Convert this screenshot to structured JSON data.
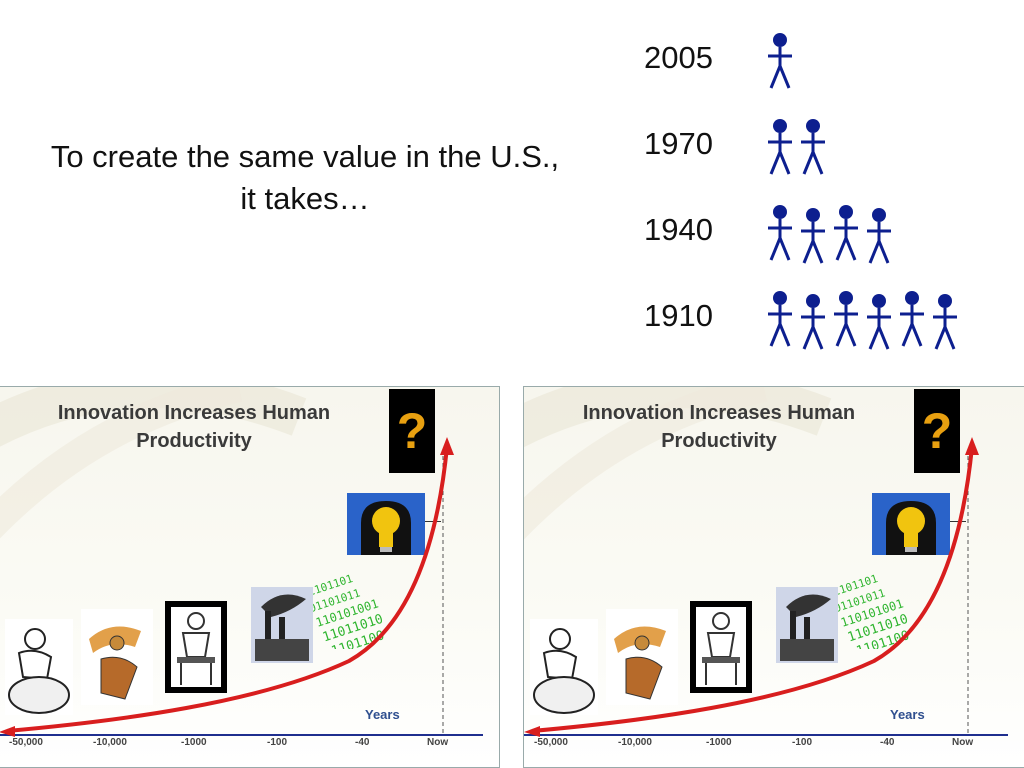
{
  "intro": {
    "line1": "To create the same value in the U.S.,",
    "line2": "it takes…"
  },
  "rows": [
    {
      "year": "2005",
      "people": 1
    },
    {
      "year": "1970",
      "people": 2
    },
    {
      "year": "1940",
      "people": 4
    },
    {
      "year": "1910",
      "people": 6
    }
  ],
  "panels": [
    {
      "title_line1": "Innovation Increases Human",
      "title_line2": "Productivity",
      "question_mark": "?",
      "axis_label": "Years",
      "ticks": [
        "-50,000",
        "-10,000",
        "-1000",
        "-100",
        "-40",
        "Now"
      ]
    },
    {
      "title_line1": "Innovation Increases Human",
      "title_line2": "Productivity",
      "question_mark": "?",
      "axis_label": "Years",
      "ticks": [
        "-50,000",
        "-10,000",
        "-1000",
        "-100",
        "-40",
        "Now"
      ]
    }
  ],
  "colors": {
    "person": "#0d1f8f",
    "curve": "#d81e1e",
    "axis": "#1f2f8f",
    "binary": "#2fb52f"
  }
}
